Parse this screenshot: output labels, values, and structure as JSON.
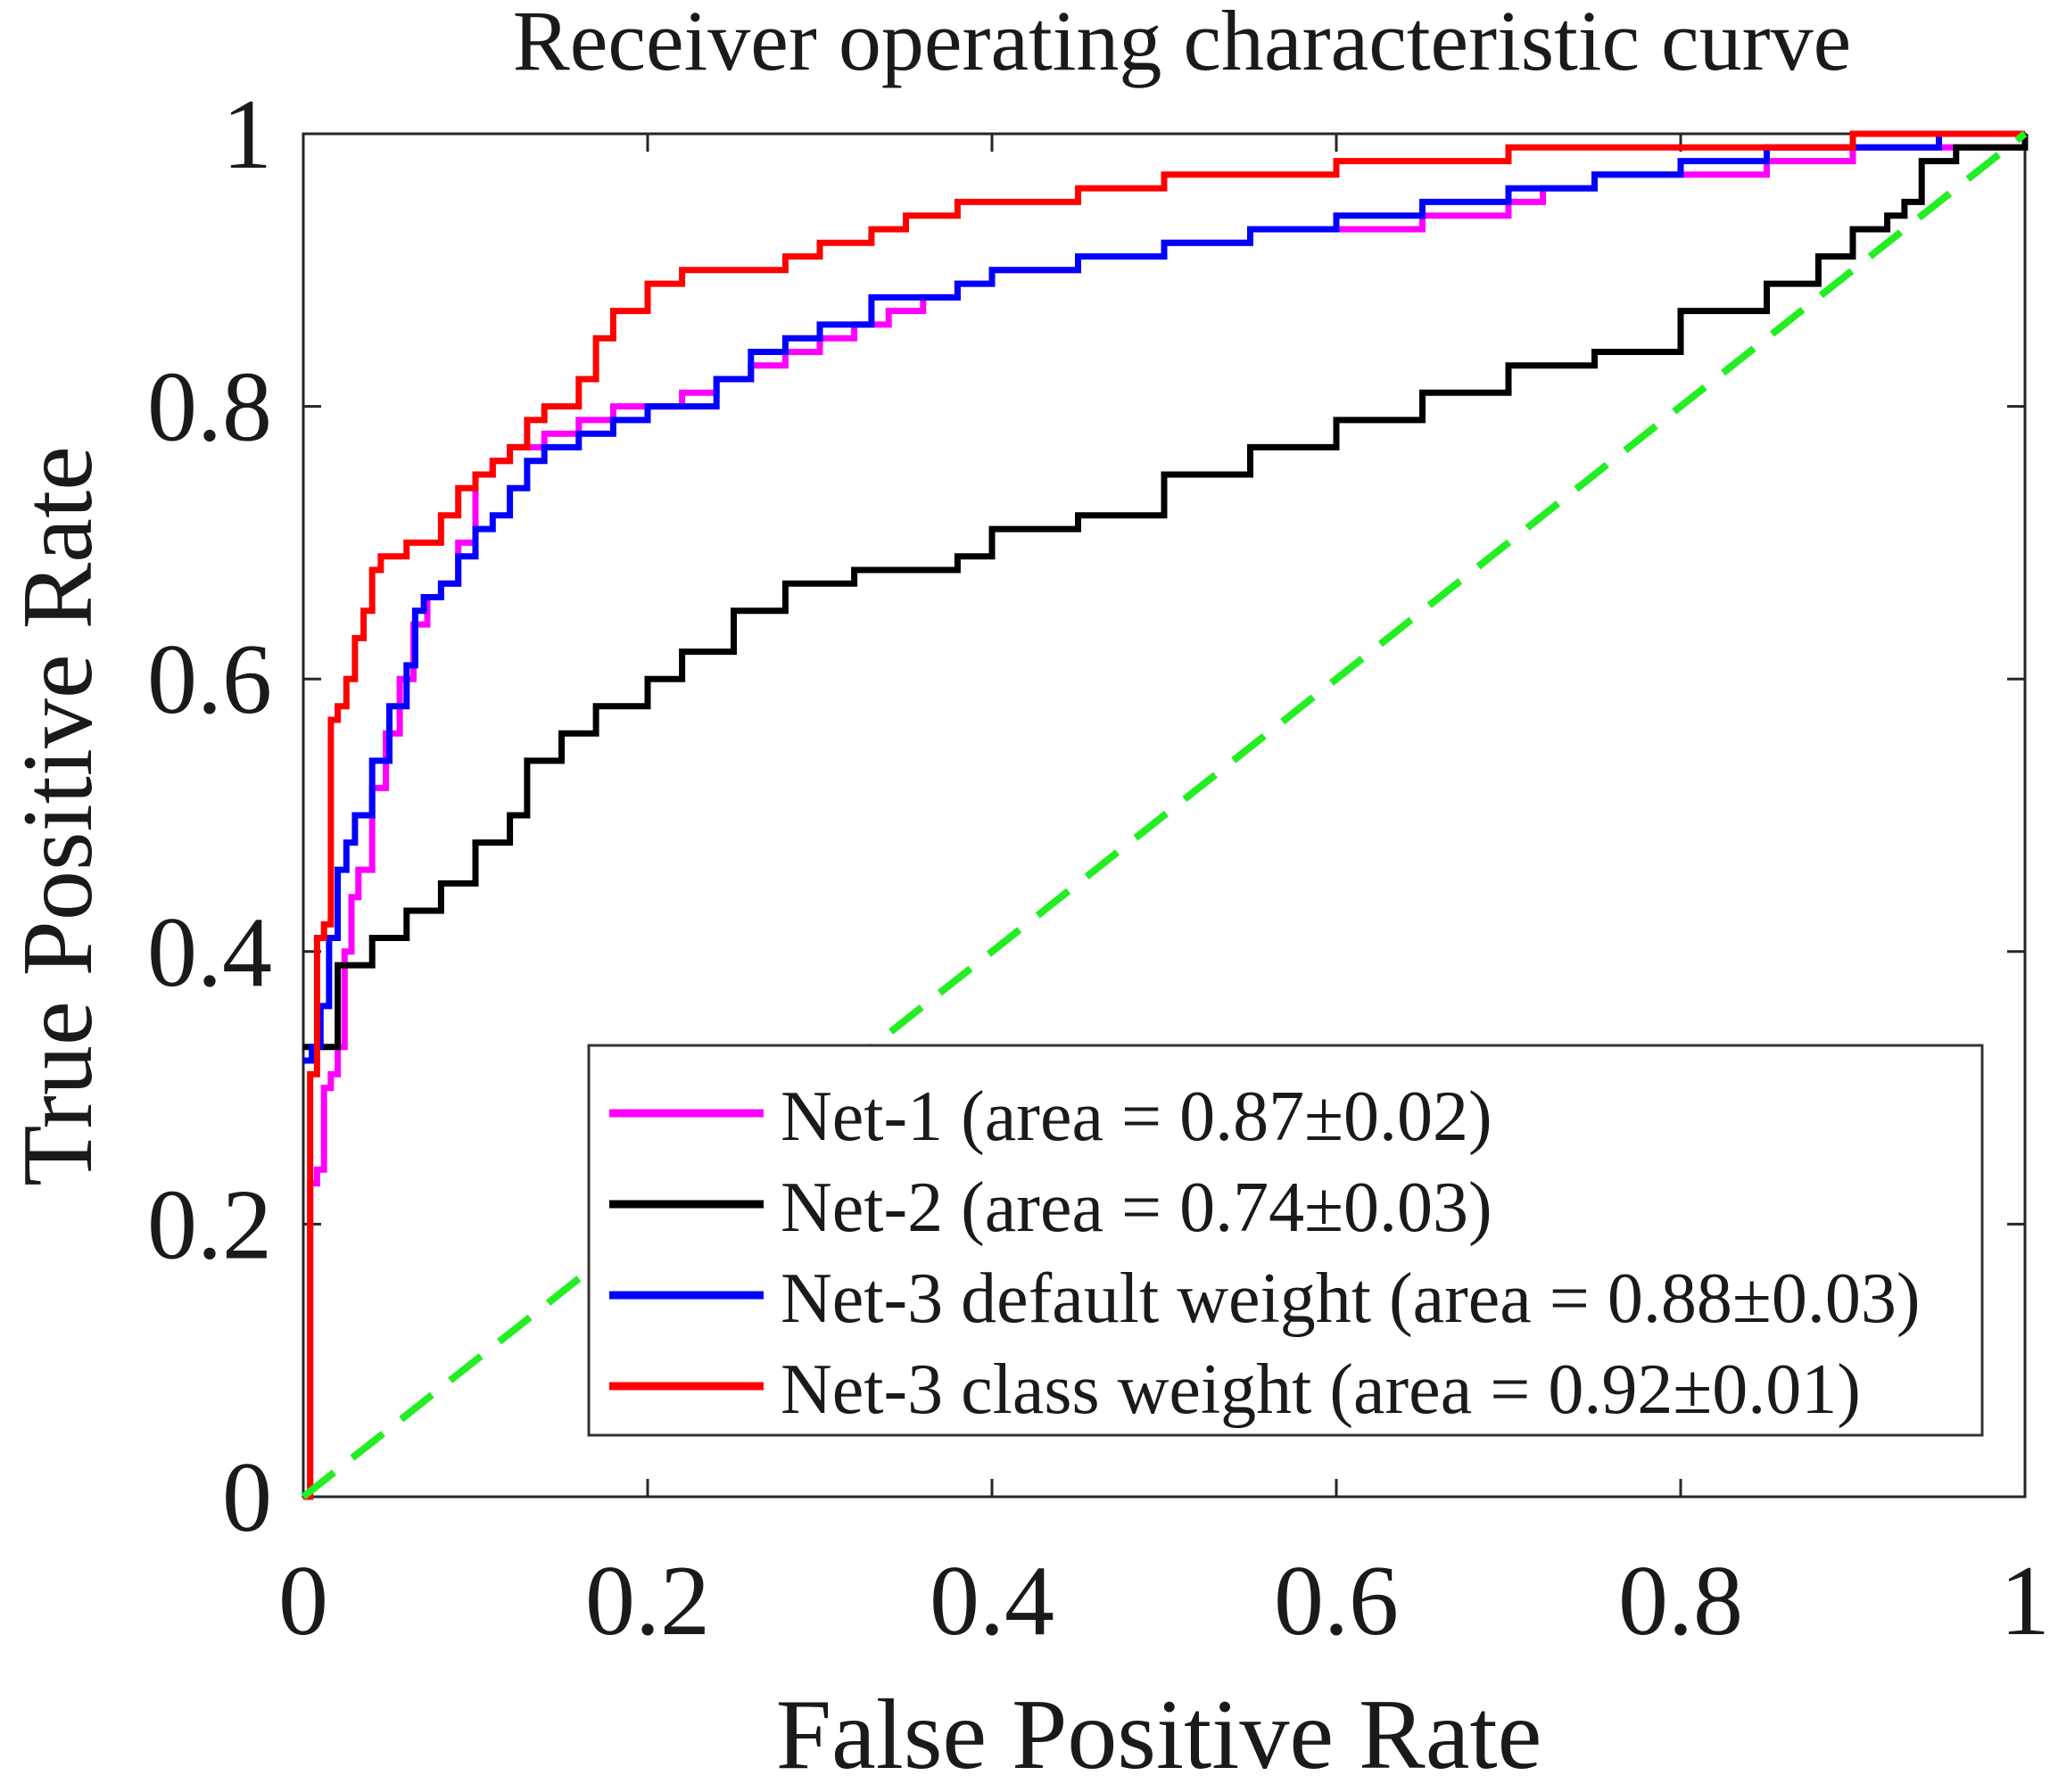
{
  "chart_data": {
    "type": "line",
    "title": "Receiver operating characteristic curve",
    "xlabel": "False Positive Rate",
    "ylabel": "True Positive Rate",
    "xlim": [
      0,
      1
    ],
    "ylim": [
      0,
      1
    ],
    "xticks": [
      0,
      0.2,
      0.4,
      0.6,
      0.8,
      1
    ],
    "yticks": [
      0,
      0.2,
      0.4,
      0.6,
      0.8,
      1
    ],
    "xtick_labels": [
      "0",
      "0.2",
      "0.4",
      "0.6",
      "0.8",
      "1"
    ],
    "ytick_labels": [
      "0",
      "0.2",
      "0.4",
      "0.6",
      "0.8",
      "1"
    ],
    "grid": false,
    "legend_position": "bottom-right",
    "series": [
      {
        "name": "Net-1 (area = 0.87±0.02)",
        "color": "#ff00ff",
        "x": [
          0,
          0.004,
          0.008,
          0.012,
          0.016,
          0.02,
          0.024,
          0.028,
          0.032,
          0.04,
          0.048,
          0.056,
          0.064,
          0.072,
          0.08,
          0.09,
          0.1,
          0.11,
          0.12,
          0.14,
          0.16,
          0.18,
          0.2,
          0.22,
          0.24,
          0.26,
          0.28,
          0.3,
          0.32,
          0.34,
          0.36,
          0.38,
          0.4,
          0.45,
          0.5,
          0.55,
          0.6,
          0.65,
          0.7,
          0.72,
          0.75,
          0.8,
          0.85,
          0.9,
          0.95,
          1
        ],
        "y": [
          0,
          0.23,
          0.24,
          0.3,
          0.31,
          0.33,
          0.4,
          0.44,
          0.46,
          0.52,
          0.56,
          0.6,
          0.64,
          0.66,
          0.67,
          0.7,
          0.75,
          0.76,
          0.77,
          0.78,
          0.79,
          0.8,
          0.8,
          0.81,
          0.82,
          0.83,
          0.84,
          0.85,
          0.86,
          0.87,
          0.88,
          0.89,
          0.9,
          0.91,
          0.92,
          0.93,
          0.93,
          0.94,
          0.95,
          0.96,
          0.97,
          0.97,
          0.98,
          0.99,
          0.99,
          1
        ]
      },
      {
        "name": "Net-2 (area = 0.74±0.03)",
        "color": "#000000",
        "x": [
          0,
          0.02,
          0.04,
          0.06,
          0.08,
          0.1,
          0.12,
          0.13,
          0.15,
          0.17,
          0.2,
          0.22,
          0.25,
          0.28,
          0.3,
          0.32,
          0.35,
          0.38,
          0.4,
          0.45,
          0.5,
          0.55,
          0.6,
          0.65,
          0.7,
          0.75,
          0.8,
          0.85,
          0.88,
          0.9,
          0.92,
          0.93,
          0.94,
          0.96,
          1
        ],
        "y": [
          0.33,
          0.39,
          0.41,
          0.43,
          0.45,
          0.48,
          0.5,
          0.54,
          0.56,
          0.58,
          0.6,
          0.62,
          0.65,
          0.67,
          0.67,
          0.68,
          0.68,
          0.69,
          0.71,
          0.72,
          0.75,
          0.77,
          0.79,
          0.81,
          0.83,
          0.84,
          0.87,
          0.89,
          0.91,
          0.93,
          0.94,
          0.95,
          0.98,
          0.99,
          1
        ]
      },
      {
        "name": "Net-3 default weight (area = 0.88±0.03)",
        "color": "#0000ff",
        "x": [
          0,
          0.005,
          0.01,
          0.015,
          0.02,
          0.025,
          0.03,
          0.04,
          0.05,
          0.06,
          0.065,
          0.07,
          0.08,
          0.09,
          0.1,
          0.11,
          0.12,
          0.13,
          0.14,
          0.16,
          0.18,
          0.2,
          0.22,
          0.24,
          0.26,
          0.28,
          0.3,
          0.32,
          0.33,
          0.35,
          0.38,
          0.4,
          0.45,
          0.5,
          0.55,
          0.6,
          0.65,
          0.7,
          0.75,
          0.8,
          0.85,
          0.9,
          0.95,
          1
        ],
        "y": [
          0.32,
          0.33,
          0.36,
          0.41,
          0.46,
          0.48,
          0.5,
          0.54,
          0.58,
          0.61,
          0.65,
          0.66,
          0.67,
          0.69,
          0.71,
          0.72,
          0.74,
          0.76,
          0.77,
          0.78,
          0.79,
          0.8,
          0.8,
          0.82,
          0.84,
          0.85,
          0.86,
          0.86,
          0.88,
          0.88,
          0.89,
          0.9,
          0.91,
          0.92,
          0.93,
          0.94,
          0.95,
          0.96,
          0.97,
          0.98,
          0.99,
          0.99,
          1,
          1
        ]
      },
      {
        "name": "Net-3 class weight (area = 0.92±0.01)",
        "color": "#ff0000",
        "x": [
          0,
          0.004,
          0.008,
          0.012,
          0.016,
          0.02,
          0.025,
          0.03,
          0.035,
          0.04,
          0.045,
          0.05,
          0.06,
          0.07,
          0.08,
          0.09,
          0.1,
          0.11,
          0.12,
          0.13,
          0.14,
          0.16,
          0.17,
          0.18,
          0.2,
          0.22,
          0.25,
          0.28,
          0.3,
          0.33,
          0.35,
          0.38,
          0.4,
          0.45,
          0.5,
          0.55,
          0.6,
          0.65,
          0.7,
          0.75,
          0.8,
          0.85,
          0.9,
          0.95,
          1
        ],
        "y": [
          0,
          0.31,
          0.41,
          0.42,
          0.57,
          0.58,
          0.6,
          0.63,
          0.65,
          0.68,
          0.69,
          0.69,
          0.7,
          0.7,
          0.72,
          0.74,
          0.75,
          0.76,
          0.77,
          0.79,
          0.8,
          0.82,
          0.85,
          0.87,
          0.89,
          0.9,
          0.9,
          0.91,
          0.92,
          0.93,
          0.94,
          0.95,
          0.95,
          0.96,
          0.97,
          0.97,
          0.98,
          0.98,
          0.99,
          0.99,
          0.99,
          0.99,
          1,
          1,
          1
        ]
      },
      {
        "name": "chance",
        "color": "#22ee22",
        "dashed": true,
        "in_legend": false,
        "x": [
          0,
          1
        ],
        "y": [
          0,
          1
        ]
      }
    ]
  }
}
